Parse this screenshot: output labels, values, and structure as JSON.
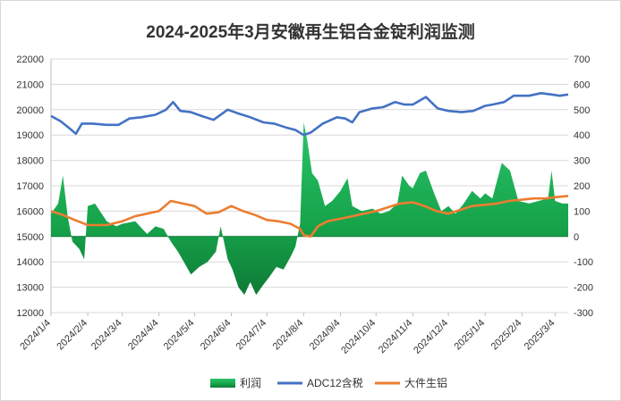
{
  "chart_data": {
    "type": "line",
    "title": "2024-2025年3月安徽再生铝合金锭利润监测",
    "x_ticks": [
      "2024/1/4",
      "2024/2/4",
      "2024/3/4",
      "2024/4/4",
      "2024/5/4",
      "2024/6/4",
      "2024/7/4",
      "2024/8/4",
      "2024/9/4",
      "2024/10/4",
      "2024/11/4",
      "2024/12/4",
      "2025/1/4",
      "2025/2/4",
      "2025/3/4"
    ],
    "x_range": [
      "2024/1/4",
      "2025/3/15"
    ],
    "y_left_range": [
      12000,
      22000
    ],
    "y_left_ticks": [
      "22000",
      "21000",
      "20000",
      "19000",
      "18000",
      "17000",
      "16000",
      "15000",
      "14000",
      "13000",
      "12000"
    ],
    "y_right_range": [
      -300,
      700
    ],
    "y_right_ticks": [
      "700",
      "600",
      "500",
      "400",
      "300",
      "200",
      "100",
      "0",
      "-100",
      "-200",
      "-300"
    ],
    "legend_position": "bottom",
    "series": [
      {
        "name": "利润",
        "type": "area",
        "axis": "right",
        "color": "#1aa050",
        "points": [
          [
            "2024/1/4",
            90
          ],
          [
            "2024/1/10",
            130
          ],
          [
            "2024/1/14",
            240
          ],
          [
            "2024/1/18",
            80
          ],
          [
            "2024/1/22",
            -20
          ],
          [
            "2024/1/28",
            -50
          ],
          [
            "2024/2/1",
            -90
          ],
          [
            "2024/2/4",
            120
          ],
          [
            "2024/2/10",
            130
          ],
          [
            "2024/2/20",
            60
          ],
          [
            "2024/2/28",
            40
          ],
          [
            "2024/3/4",
            50
          ],
          [
            "2024/3/15",
            60
          ],
          [
            "2024/3/25",
            10
          ],
          [
            "2024/4/1",
            40
          ],
          [
            "2024/4/8",
            30
          ],
          [
            "2024/4/14",
            -20
          ],
          [
            "2024/4/20",
            -60
          ],
          [
            "2024/4/25",
            -100
          ],
          [
            "2024/5/1",
            -150
          ],
          [
            "2024/5/8",
            -120
          ],
          [
            "2024/5/15",
            -100
          ],
          [
            "2024/5/22",
            -60
          ],
          [
            "2024/5/26",
            40
          ],
          [
            "2024/6/1",
            -90
          ],
          [
            "2024/6/5",
            -130
          ],
          [
            "2024/6/10",
            -200
          ],
          [
            "2024/6/15",
            -230
          ],
          [
            "2024/6/20",
            -180
          ],
          [
            "2024/6/25",
            -230
          ],
          [
            "2024/7/1",
            -190
          ],
          [
            "2024/7/6",
            -160
          ],
          [
            "2024/7/12",
            -120
          ],
          [
            "2024/7/18",
            -130
          ],
          [
            "2024/7/24",
            -80
          ],
          [
            "2024/7/28",
            -40
          ],
          [
            "2024/8/1",
            50
          ],
          [
            "2024/8/4",
            450
          ],
          [
            "2024/8/7",
            380
          ],
          [
            "2024/8/11",
            250
          ],
          [
            "2024/8/16",
            220
          ],
          [
            "2024/8/22",
            120
          ],
          [
            "2024/8/28",
            140
          ],
          [
            "2024/9/4",
            180
          ],
          [
            "2024/9/10",
            230
          ],
          [
            "2024/9/14",
            120
          ],
          [
            "2024/9/22",
            100
          ],
          [
            "2024/10/1",
            110
          ],
          [
            "2024/10/8",
            90
          ],
          [
            "2024/10/15",
            100
          ],
          [
            "2024/10/22",
            130
          ],
          [
            "2024/10/26",
            240
          ],
          [
            "2024/11/1",
            200
          ],
          [
            "2024/11/4",
            190
          ],
          [
            "2024/11/10",
            250
          ],
          [
            "2024/11/15",
            260
          ],
          [
            "2024/11/22",
            170
          ],
          [
            "2024/11/28",
            100
          ],
          [
            "2024/12/4",
            120
          ],
          [
            "2024/12/10",
            90
          ],
          [
            "2024/12/17",
            130
          ],
          [
            "2024/12/24",
            180
          ],
          [
            "2024/12/31",
            150
          ],
          [
            "2025/1/4",
            170
          ],
          [
            "2025/1/10",
            150
          ],
          [
            "2025/1/18",
            290
          ],
          [
            "2025/1/25",
            260
          ],
          [
            "2025/2/1",
            140
          ],
          [
            "2025/2/10",
            130
          ],
          [
            "2025/2/18",
            140
          ],
          [
            "2025/2/26",
            150
          ],
          [
            "2025/3/1",
            260
          ],
          [
            "2025/3/4",
            140
          ],
          [
            "2025/3/10",
            130
          ],
          [
            "2025/3/15",
            130
          ]
        ]
      },
      {
        "name": "ADC12含税",
        "type": "line",
        "axis": "left",
        "color": "#4472c4",
        "points": [
          [
            "2024/1/4",
            19750
          ],
          [
            "2024/1/12",
            19550
          ],
          [
            "2024/1/20",
            19250
          ],
          [
            "2024/1/25",
            19050
          ],
          [
            "2024/1/30",
            19450
          ],
          [
            "2024/2/8",
            19450
          ],
          [
            "2024/2/20",
            19400
          ],
          [
            "2024/3/1",
            19400
          ],
          [
            "2024/3/10",
            19650
          ],
          [
            "2024/3/20",
            19700
          ],
          [
            "2024/4/1",
            19800
          ],
          [
            "2024/4/10",
            20000
          ],
          [
            "2024/4/16",
            20300
          ],
          [
            "2024/4/22",
            19950
          ],
          [
            "2024/5/1",
            19900
          ],
          [
            "2024/5/10",
            19750
          ],
          [
            "2024/5/20",
            19600
          ],
          [
            "2024/6/1",
            20000
          ],
          [
            "2024/6/10",
            19850
          ],
          [
            "2024/6/20",
            19700
          ],
          [
            "2024/7/1",
            19500
          ],
          [
            "2024/7/10",
            19450
          ],
          [
            "2024/7/20",
            19300
          ],
          [
            "2024/7/28",
            19200
          ],
          [
            "2024/8/4",
            19000
          ],
          [
            "2024/8/10",
            19100
          ],
          [
            "2024/8/20",
            19450
          ],
          [
            "2024/9/1",
            19700
          ],
          [
            "2024/9/8",
            19650
          ],
          [
            "2024/9/14",
            19500
          ],
          [
            "2024/9/20",
            19900
          ],
          [
            "2024/10/1",
            20050
          ],
          [
            "2024/10/10",
            20100
          ],
          [
            "2024/10/20",
            20300
          ],
          [
            "2024/10/28",
            20200
          ],
          [
            "2024/11/4",
            20200
          ],
          [
            "2024/11/15",
            20500
          ],
          [
            "2024/11/25",
            20050
          ],
          [
            "2024/12/4",
            19950
          ],
          [
            "2024/12/15",
            19900
          ],
          [
            "2024/12/25",
            19950
          ],
          [
            "2025/1/4",
            20150
          ],
          [
            "2025/1/10",
            20200
          ],
          [
            "2025/1/20",
            20300
          ],
          [
            "2025/1/28",
            20550
          ],
          [
            "2025/2/10",
            20550
          ],
          [
            "2025/2/20",
            20650
          ],
          [
            "2025/3/1",
            20600
          ],
          [
            "2025/3/8",
            20550
          ],
          [
            "2025/3/15",
            20600
          ]
        ]
      },
      {
        "name": "大件生铝",
        "type": "line",
        "axis": "left",
        "color": "#ed7d31",
        "points": [
          [
            "2024/1/4",
            16000
          ],
          [
            "2024/1/14",
            15850
          ],
          [
            "2024/1/24",
            15650
          ],
          [
            "2024/2/4",
            15450
          ],
          [
            "2024/2/20",
            15450
          ],
          [
            "2024/3/4",
            15600
          ],
          [
            "2024/3/15",
            15800
          ],
          [
            "2024/3/25",
            15900
          ],
          [
            "2024/4/4",
            16000
          ],
          [
            "2024/4/14",
            16400
          ],
          [
            "2024/4/24",
            16300
          ],
          [
            "2024/5/4",
            16200
          ],
          [
            "2024/5/14",
            15900
          ],
          [
            "2024/5/24",
            15950
          ],
          [
            "2024/6/4",
            16200
          ],
          [
            "2024/6/14",
            16000
          ],
          [
            "2024/6/24",
            15850
          ],
          [
            "2024/7/4",
            15650
          ],
          [
            "2024/7/14",
            15600
          ],
          [
            "2024/7/24",
            15500
          ],
          [
            "2024/8/1",
            15300
          ],
          [
            "2024/8/4",
            15050
          ],
          [
            "2024/8/10",
            15000
          ],
          [
            "2024/8/16",
            15400
          ],
          [
            "2024/8/24",
            15600
          ],
          [
            "2024/9/4",
            15700
          ],
          [
            "2024/9/14",
            15800
          ],
          [
            "2024/9/24",
            15900
          ],
          [
            "2024/10/4",
            16000
          ],
          [
            "2024/10/14",
            16150
          ],
          [
            "2024/10/24",
            16300
          ],
          [
            "2024/11/4",
            16350
          ],
          [
            "2024/11/14",
            16200
          ],
          [
            "2024/11/24",
            16000
          ],
          [
            "2024/12/4",
            15900
          ],
          [
            "2024/12/14",
            16050
          ],
          [
            "2024/12/24",
            16200
          ],
          [
            "2025/1/4",
            16250
          ],
          [
            "2025/1/14",
            16300
          ],
          [
            "2025/1/24",
            16400
          ],
          [
            "2025/2/4",
            16450
          ],
          [
            "2025/2/14",
            16500
          ],
          [
            "2025/2/24",
            16500
          ],
          [
            "2025/3/4",
            16550
          ],
          [
            "2025/3/15",
            16600
          ]
        ]
      }
    ]
  }
}
